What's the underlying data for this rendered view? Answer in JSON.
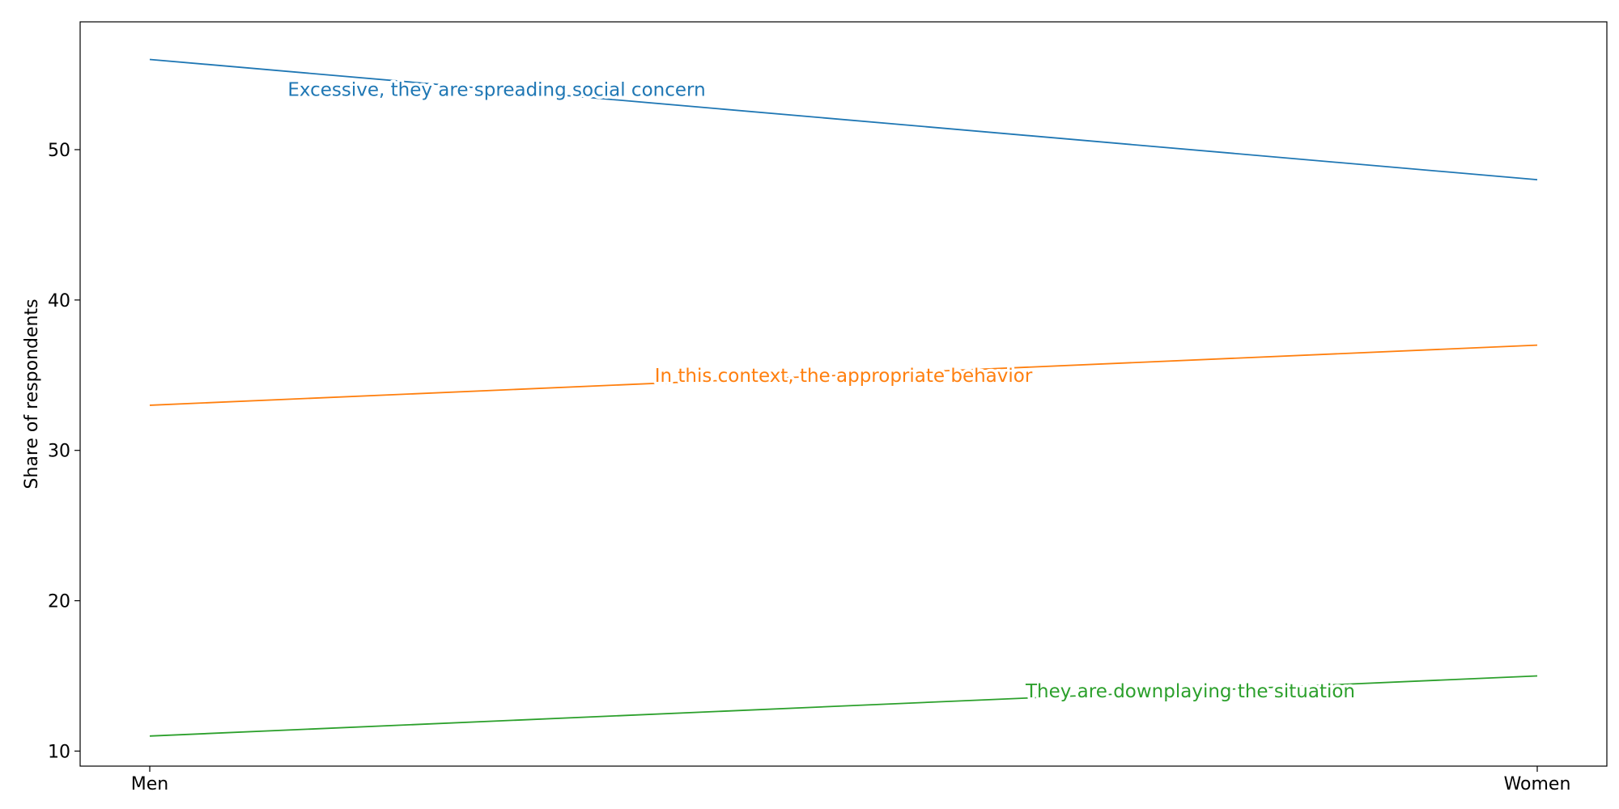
{
  "chart_data": {
    "type": "line",
    "title": "",
    "xlabel": "",
    "ylabel": "Share of respondents",
    "categories": [
      "Men",
      "Women"
    ],
    "ylim": [
      9,
      58.5
    ],
    "yticks": [
      10,
      20,
      30,
      40,
      50
    ],
    "grid": false,
    "legend": "none",
    "series": [
      {
        "name": "Excessive, they are spreading social concern",
        "values": [
          56,
          48
        ],
        "color": "#1f77b4"
      },
      {
        "name": "In this context, the appropriate behavior",
        "values": [
          33,
          37
        ],
        "color": "#ff7f0e"
      },
      {
        "name": "They are downplaying the situation",
        "values": [
          11,
          15
        ],
        "color": "#2ca02c"
      }
    ]
  }
}
